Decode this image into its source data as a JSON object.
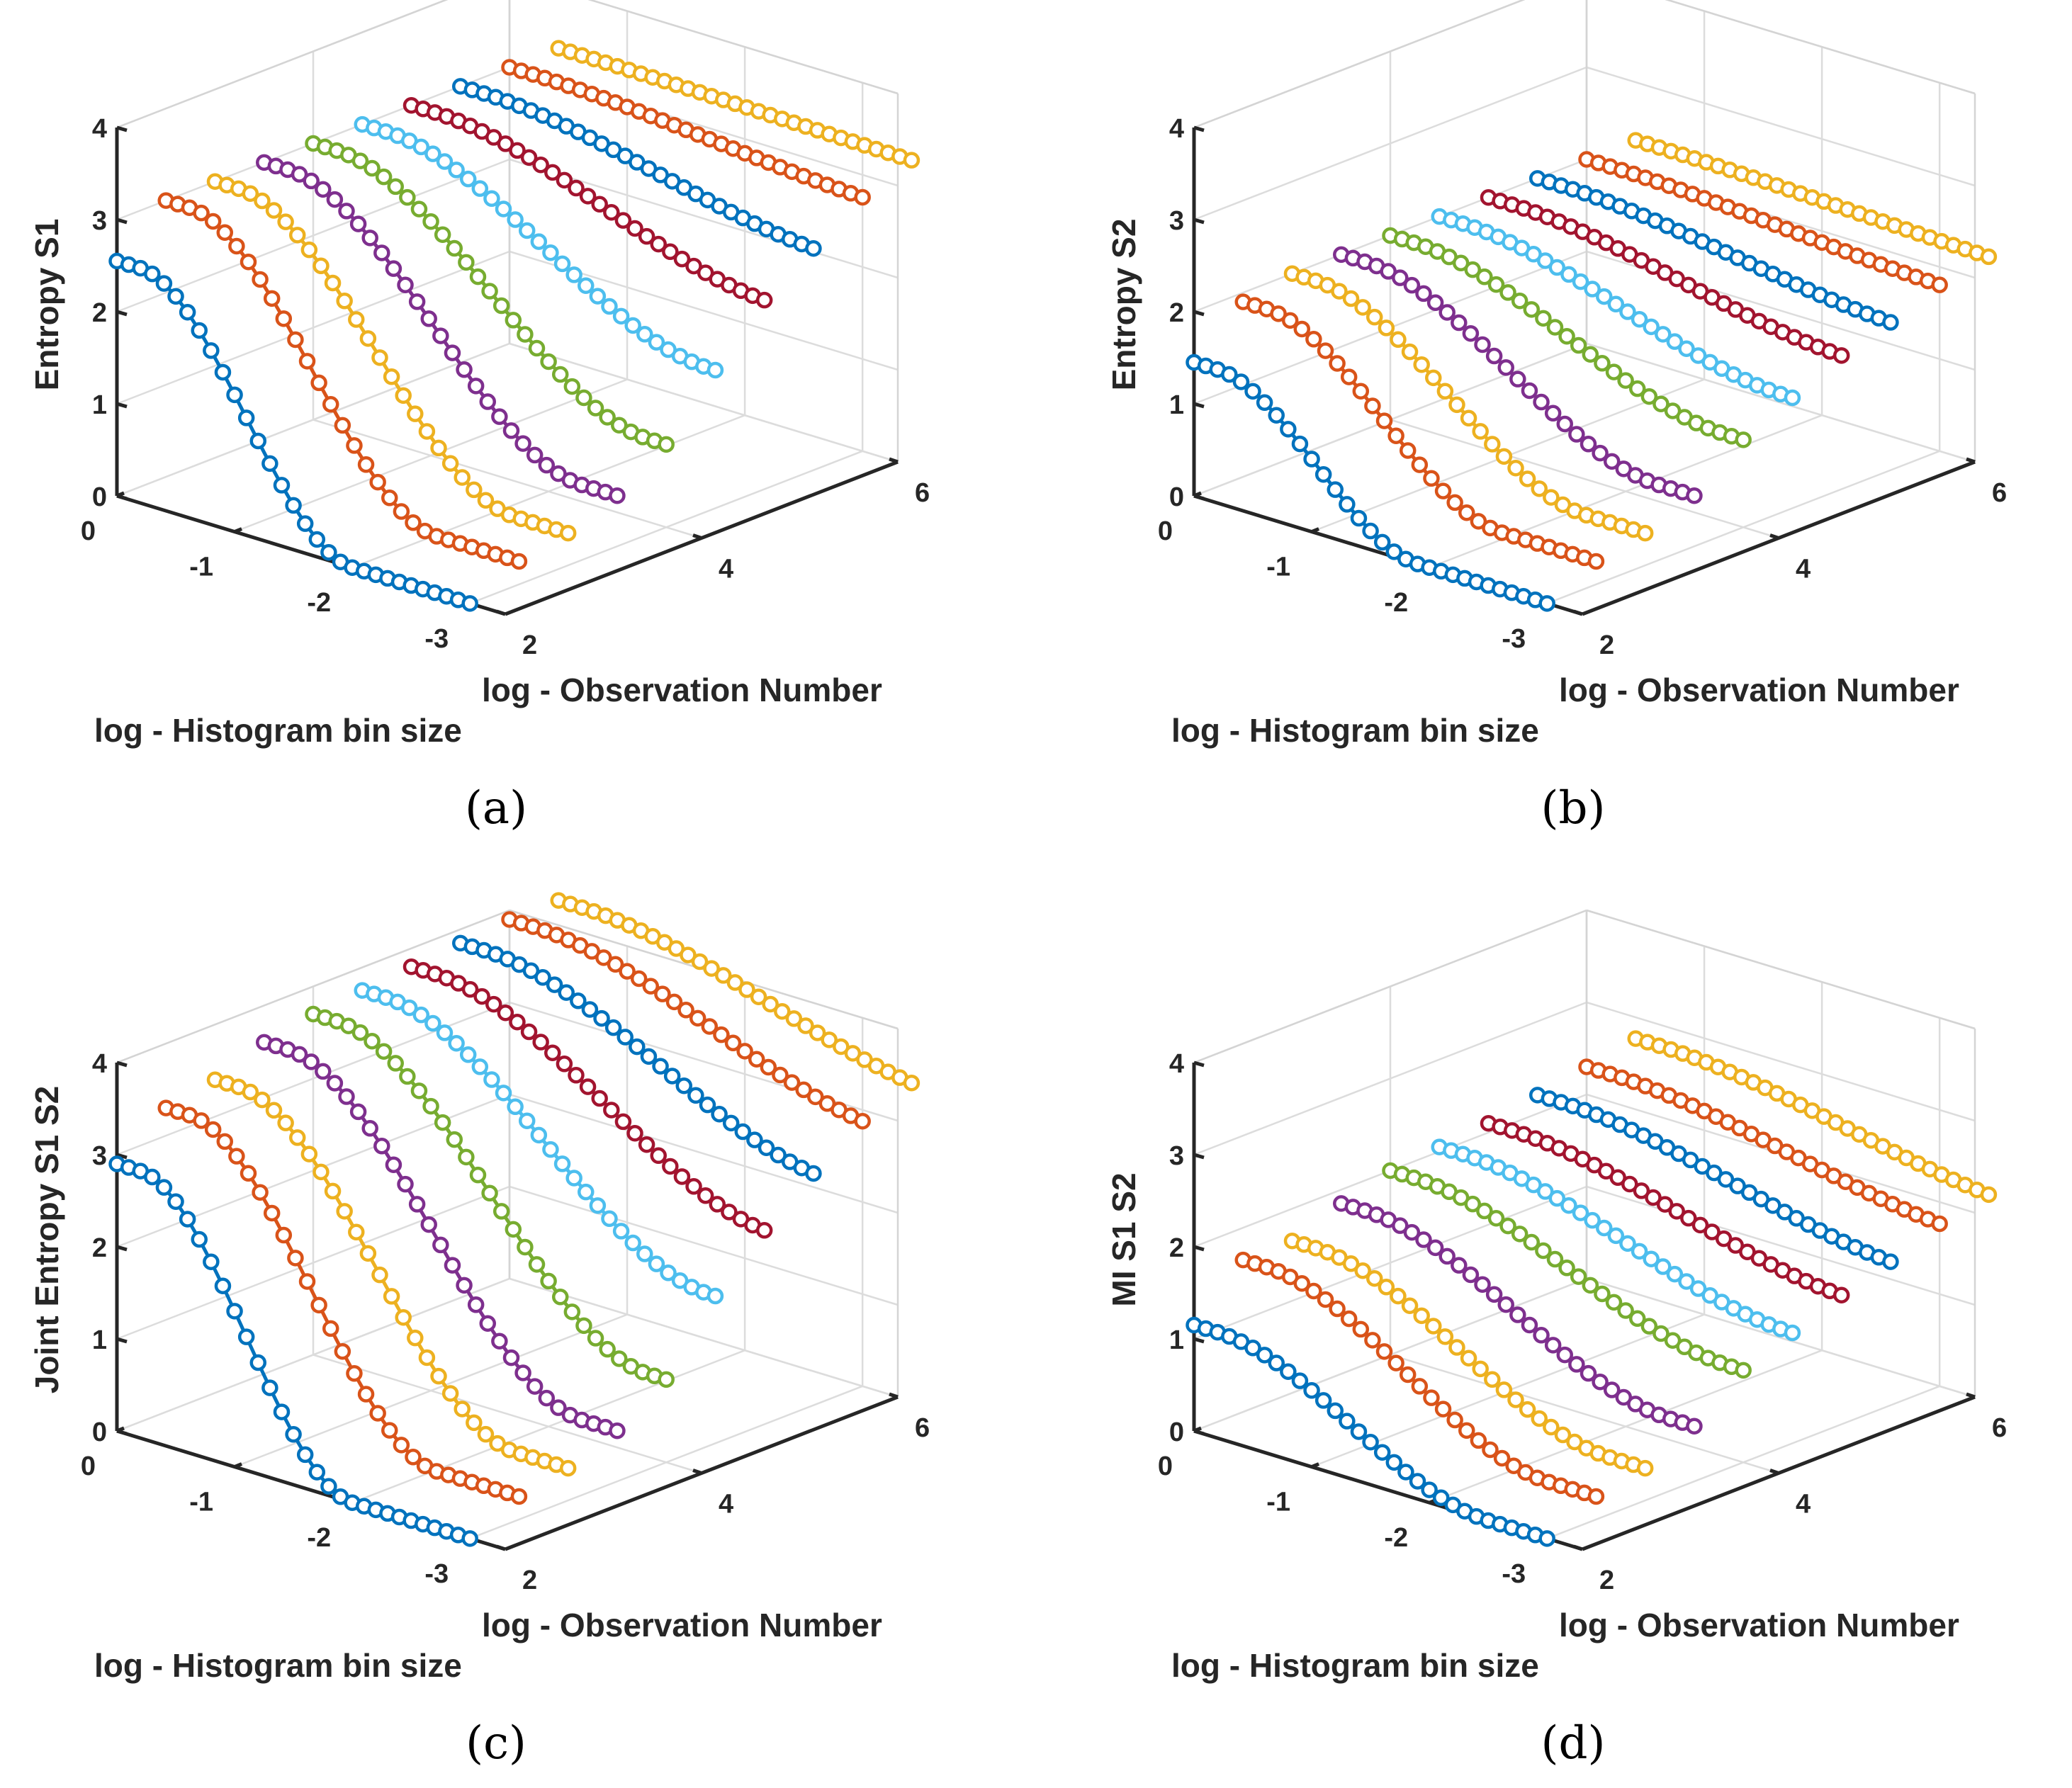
{
  "figure": {
    "panels": [
      {
        "letter": "a",
        "caption": "(a)"
      },
      {
        "letter": "b",
        "caption": "(b)"
      },
      {
        "letter": "c",
        "caption": "(c)"
      },
      {
        "letter": "d",
        "caption": "(d)"
      }
    ]
  },
  "chart_data": [
    {
      "type": "line3d",
      "panel": "a",
      "zlabel": "Entropy S1",
      "xlabel": "log - Histogram bin size",
      "ylabel": "log - Observation Number",
      "xlim": [
        -3.3,
        0
      ],
      "ylim": [
        2,
        6
      ],
      "zlim": [
        0,
        4
      ],
      "xticks": [
        0,
        -1,
        -2,
        -3
      ],
      "xtick_labels": [
        "0",
        "-1",
        "-2",
        "-3"
      ],
      "yticks": [
        2,
        4,
        6
      ],
      "ytick_labels": [
        "2",
        "4",
        "6"
      ],
      "zticks": [
        0,
        1,
        2,
        3,
        4
      ],
      "ztick_labels": [
        "0",
        "1",
        "2",
        "3",
        "4"
      ],
      "marker": "circle",
      "bin_log": [
        0,
        -0.1,
        -0.2,
        -0.3,
        -0.4,
        -0.5,
        -0.6,
        -0.7,
        -0.8,
        -0.9,
        -1,
        -1.1,
        -1.2,
        -1.3,
        -1.4,
        -1.5,
        -1.6,
        -1.7,
        -1.8,
        -1.9,
        -2,
        -2.1,
        -2.2,
        -2.3,
        -2.4,
        -2.5,
        -2.6,
        -2.7,
        -2.8,
        -2.9,
        -3
      ],
      "series": [
        {
          "obs_log": 2.0,
          "color": "#0072BD",
          "z_max": 2.55,
          "drop": 2.0,
          "z_floor": 0
        },
        {
          "obs_log": 2.5,
          "color": "#D95319",
          "z_max": 3.0,
          "drop": 2.3,
          "z_floor": 0.25
        },
        {
          "obs_log": 3.0,
          "color": "#EDB120",
          "z_max": 3.0,
          "drop": 2.55,
          "z_floor": 0.35
        },
        {
          "obs_log": 3.5,
          "color": "#7E2F8E",
          "z_max": 3.0,
          "drop": 2.7,
          "z_floor": 0.55
        },
        {
          "obs_log": 4.0,
          "color": "#77AC30",
          "z_max": 3.0,
          "drop": 2.85,
          "z_floor": 0.9
        },
        {
          "obs_log": 4.5,
          "color": "#4DBEEE",
          "z_max": 3.0,
          "drop": 2.95,
          "z_floor": 1.5
        },
        {
          "obs_log": 5.0,
          "color": "#A2142F",
          "z_max": 3.0,
          "drop": 3.1,
          "z_floor": 2.05
        },
        {
          "obs_log": 5.5,
          "color": "#0072BD",
          "z_max": 3.0,
          "drop": 3.2,
          "z_floor": 2.4
        },
        {
          "obs_log": 6.0,
          "color": "#D95319",
          "z_max": 3.0,
          "drop": 3.3,
          "z_floor": 2.75
        },
        {
          "obs_log": 6.5,
          "color": "#EDB120",
          "z_max": 3.0,
          "drop": 3.4,
          "z_floor": 2.95
        }
      ]
    },
    {
      "type": "line3d",
      "panel": "b",
      "zlabel": "Entropy S2",
      "xlabel": "log - Histogram bin size",
      "ylabel": "log - Observation Number",
      "xlim": [
        -3.3,
        0
      ],
      "ylim": [
        2,
        6
      ],
      "zlim": [
        0,
        4
      ],
      "xticks": [
        0,
        -1,
        -2,
        -3
      ],
      "xtick_labels": [
        "0",
        "-1",
        "-2",
        "-3"
      ],
      "yticks": [
        2,
        4,
        6
      ],
      "ytick_labels": [
        "2",
        "4",
        "6"
      ],
      "zticks": [
        0,
        1,
        2,
        3,
        4
      ],
      "ztick_labels": [
        "0",
        "1",
        "2",
        "3",
        "4"
      ],
      "marker": "circle",
      "bin_log": [
        0,
        -0.1,
        -0.2,
        -0.3,
        -0.4,
        -0.5,
        -0.6,
        -0.7,
        -0.8,
        -0.9,
        -1,
        -1.1,
        -1.2,
        -1.3,
        -1.4,
        -1.5,
        -1.6,
        -1.7,
        -1.8,
        -1.9,
        -2,
        -2.1,
        -2.2,
        -2.3,
        -2.4,
        -2.5,
        -2.6,
        -2.7,
        -2.8,
        -2.9,
        -3
      ],
      "series": [
        {
          "obs_log": 2.0,
          "color": "#0072BD",
          "z_max": 1.45,
          "drop": 1.9,
          "z_floor": 0
        },
        {
          "obs_log": 2.5,
          "color": "#D95319",
          "z_max": 1.9,
          "drop": 2.2,
          "z_floor": 0.25
        },
        {
          "obs_log": 3.0,
          "color": "#EDB120",
          "z_max": 2.0,
          "drop": 2.5,
          "z_floor": 0.35
        },
        {
          "obs_log": 3.5,
          "color": "#7E2F8E",
          "z_max": 2.0,
          "drop": 2.7,
          "z_floor": 0.55
        },
        {
          "obs_log": 4.0,
          "color": "#77AC30",
          "z_max": 2.0,
          "drop": 2.85,
          "z_floor": 0.95
        },
        {
          "obs_log": 4.5,
          "color": "#4DBEEE",
          "z_max": 2.0,
          "drop": 2.95,
          "z_floor": 1.2
        },
        {
          "obs_log": 5.0,
          "color": "#A2142F",
          "z_max": 2.0,
          "drop": 3.1,
          "z_floor": 1.45
        },
        {
          "obs_log": 5.5,
          "color": "#0072BD",
          "z_max": 2.0,
          "drop": 3.2,
          "z_floor": 1.6
        },
        {
          "obs_log": 6.0,
          "color": "#D95319",
          "z_max": 2.0,
          "drop": 3.3,
          "z_floor": 1.8
        },
        {
          "obs_log": 6.5,
          "color": "#EDB120",
          "z_max": 2.0,
          "drop": 3.4,
          "z_floor": 1.9
        }
      ]
    },
    {
      "type": "line3d",
      "panel": "c",
      "zlabel": "Joint Entropy S1 S2",
      "xlabel": "log - Histogram bin size",
      "ylabel": "log - Observation Number",
      "xlim": [
        -3.3,
        0
      ],
      "ylim": [
        2,
        6
      ],
      "zlim": [
        0,
        4
      ],
      "xticks": [
        0,
        -1,
        -2,
        -3
      ],
      "xtick_labels": [
        "0",
        "-1",
        "-2",
        "-3"
      ],
      "yticks": [
        2,
        4,
        6
      ],
      "ytick_labels": [
        "2",
        "4",
        "6"
      ],
      "zticks": [
        0,
        1,
        2,
        3,
        4
      ],
      "ztick_labels": [
        "0",
        "1",
        "2",
        "3",
        "4"
      ],
      "marker": "circle",
      "bin_log": [
        0,
        -0.1,
        -0.2,
        -0.3,
        -0.4,
        -0.5,
        -0.6,
        -0.7,
        -0.8,
        -0.9,
        -1,
        -1.1,
        -1.2,
        -1.3,
        -1.4,
        -1.5,
        -1.6,
        -1.7,
        -1.8,
        -1.9,
        -2,
        -2.1,
        -2.2,
        -2.3,
        -2.4,
        -2.5,
        -2.6,
        -2.7,
        -2.8,
        -2.9,
        -3
      ],
      "series": [
        {
          "obs_log": 2.0,
          "color": "#0072BD",
          "z_max": 2.9,
          "drop": 2.0,
          "z_floor": 0
        },
        {
          "obs_log": 2.5,
          "color": "#D95319",
          "z_max": 3.3,
          "drop": 2.3,
          "z_floor": 0.25
        },
        {
          "obs_log": 3.0,
          "color": "#EDB120",
          "z_max": 3.4,
          "drop": 2.55,
          "z_floor": 0.35
        },
        {
          "obs_log": 3.5,
          "color": "#7E2F8E",
          "z_max": 3.6,
          "drop": 2.7,
          "z_floor": 0.55
        },
        {
          "obs_log": 4.0,
          "color": "#77AC30",
          "z_max": 3.7,
          "drop": 2.85,
          "z_floor": 0.9
        },
        {
          "obs_log": 4.5,
          "color": "#4DBEEE",
          "z_max": 3.75,
          "drop": 2.95,
          "z_floor": 1.6
        },
        {
          "obs_log": 5.0,
          "color": "#A2142F",
          "z_max": 3.8,
          "drop": 3.1,
          "z_floor": 2.1
        },
        {
          "obs_log": 5.5,
          "color": "#0072BD",
          "z_max": 3.85,
          "drop": 3.2,
          "z_floor": 2.5
        },
        {
          "obs_log": 6.0,
          "color": "#D95319",
          "z_max": 3.9,
          "drop": 3.3,
          "z_floor": 2.85
        },
        {
          "obs_log": 6.5,
          "color": "#EDB120",
          "z_max": 3.9,
          "drop": 3.4,
          "z_floor": 3.05
        }
      ]
    },
    {
      "type": "line3d",
      "panel": "d",
      "zlabel": "MI S1 S2",
      "xlabel": "log - Histogram bin size",
      "ylabel": "log - Observation Number",
      "xlim": [
        -3.3,
        0
      ],
      "ylim": [
        2,
        6
      ],
      "zlim": [
        0,
        4
      ],
      "xticks": [
        0,
        -1,
        -2,
        -3
      ],
      "xtick_labels": [
        "0",
        "-1",
        "-2",
        "-3"
      ],
      "yticks": [
        2,
        4,
        6
      ],
      "ytick_labels": [
        "2",
        "4",
        "6"
      ],
      "zticks": [
        0,
        1,
        2,
        3,
        4
      ],
      "ztick_labels": [
        "0",
        "1",
        "2",
        "3",
        "4"
      ],
      "marker": "circle",
      "bin_log": [
        0,
        -0.1,
        -0.2,
        -0.3,
        -0.4,
        -0.5,
        -0.6,
        -0.7,
        -0.8,
        -0.9,
        -1,
        -1.1,
        -1.2,
        -1.3,
        -1.4,
        -1.5,
        -1.6,
        -1.7,
        -1.8,
        -1.9,
        -2,
        -2.1,
        -2.2,
        -2.3,
        -2.4,
        -2.5,
        -2.6,
        -2.7,
        -2.8,
        -2.9,
        -3
      ],
      "series": [
        {
          "obs_log": 2.0,
          "color": "#0072BD",
          "z_max": 1.15,
          "drop": 2.5,
          "z_floor": 0
        },
        {
          "obs_log": 2.5,
          "color": "#D95319",
          "z_max": 1.65,
          "drop": 2.6,
          "z_floor": 0.25
        },
        {
          "obs_log": 3.0,
          "color": "#EDB120",
          "z_max": 1.65,
          "drop": 2.7,
          "z_floor": 0.35
        },
        {
          "obs_log": 3.5,
          "color": "#7E2F8E",
          "z_max": 1.85,
          "drop": 2.8,
          "z_floor": 0.6
        },
        {
          "obs_log": 4.0,
          "color": "#77AC30",
          "z_max": 2.0,
          "drop": 2.9,
          "z_floor": 1.0
        },
        {
          "obs_log": 4.5,
          "color": "#4DBEEE",
          "z_max": 2.05,
          "drop": 3.0,
          "z_floor": 1.2
        },
        {
          "obs_log": 5.0,
          "color": "#A2142F",
          "z_max": 2.1,
          "drop": 3.1,
          "z_floor": 1.4
        },
        {
          "obs_log": 5.5,
          "color": "#0072BD",
          "z_max": 2.2,
          "drop": 3.2,
          "z_floor": 1.55
        },
        {
          "obs_log": 6.0,
          "color": "#D95319",
          "z_max": 2.3,
          "drop": 3.3,
          "z_floor": 1.75
        },
        {
          "obs_log": 6.5,
          "color": "#EDB120",
          "z_max": 2.4,
          "drop": 3.4,
          "z_floor": 1.85
        }
      ]
    }
  ]
}
